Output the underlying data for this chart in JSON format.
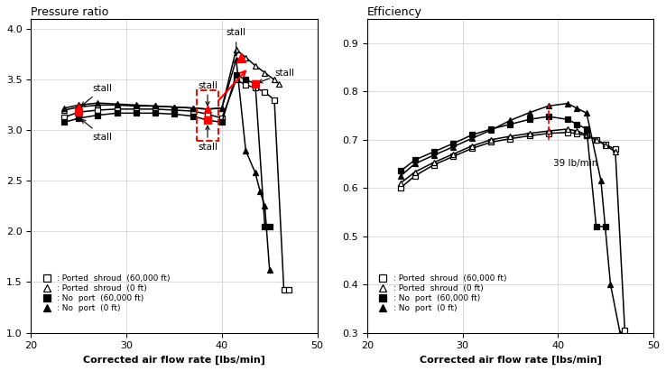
{
  "left_title": "Pressure ratio",
  "right_title": "Efficiency",
  "xlabel": "Corrected air flow rate [lbs/min]",
  "ps60_x": [
    23.5,
    25.0,
    27.0,
    29.0,
    31.0,
    33.0,
    35.0,
    37.0,
    38.5,
    40.0,
    41.5,
    42.5,
    43.5,
    44.5,
    45.5,
    46.5,
    47.0
  ],
  "ps60_pr": [
    3.13,
    3.18,
    3.2,
    3.21,
    3.21,
    3.21,
    3.2,
    3.19,
    3.16,
    3.12,
    3.5,
    3.45,
    3.42,
    3.38,
    3.3,
    1.42,
    1.42
  ],
  "ps0_x": [
    23.5,
    25.0,
    27.0,
    29.0,
    31.0,
    33.0,
    35.0,
    37.0,
    38.5,
    40.0,
    41.5,
    42.5,
    43.5,
    44.5,
    45.5,
    46.0
  ],
  "ps0_pr": [
    3.2,
    3.23,
    3.25,
    3.25,
    3.24,
    3.24,
    3.23,
    3.22,
    3.21,
    3.22,
    3.8,
    3.72,
    3.64,
    3.57,
    3.5,
    3.46
  ],
  "np60_x": [
    23.5,
    25.0,
    27.0,
    29.0,
    31.0,
    33.0,
    35.0,
    37.0,
    38.5,
    40.0,
    41.5,
    42.5,
    43.5,
    44.5,
    45.0
  ],
  "np60_pr": [
    3.08,
    3.12,
    3.15,
    3.17,
    3.17,
    3.17,
    3.16,
    3.14,
    3.1,
    3.08,
    3.55,
    3.5,
    3.46,
    2.05,
    2.05
  ],
  "np0_x": [
    23.5,
    25.0,
    27.0,
    29.0,
    31.0,
    33.0,
    35.0,
    37.0,
    38.5,
    40.0,
    41.5,
    42.5,
    43.5,
    44.0,
    44.5,
    45.0
  ],
  "np0_pr": [
    3.22,
    3.25,
    3.27,
    3.26,
    3.25,
    3.24,
    3.23,
    3.22,
    3.21,
    3.22,
    3.7,
    2.8,
    2.58,
    2.4,
    2.25,
    1.62
  ],
  "ps60_eff_x": [
    23.5,
    25.0,
    27.0,
    29.0,
    31.0,
    33.0,
    35.0,
    37.0,
    39.0,
    41.0,
    42.0,
    43.0,
    44.0,
    45.0,
    46.0,
    47.0
  ],
  "ps60_eff": [
    0.6,
    0.625,
    0.648,
    0.665,
    0.682,
    0.695,
    0.702,
    0.708,
    0.713,
    0.715,
    0.713,
    0.708,
    0.7,
    0.69,
    0.68,
    0.305
  ],
  "ps0_eff_x": [
    23.5,
    25.0,
    27.0,
    29.0,
    31.0,
    33.0,
    35.0,
    37.0,
    39.0,
    41.0,
    42.0,
    43.0,
    44.0,
    45.0,
    46.0
  ],
  "ps0_eff": [
    0.61,
    0.633,
    0.653,
    0.67,
    0.687,
    0.7,
    0.707,
    0.713,
    0.718,
    0.722,
    0.718,
    0.71,
    0.7,
    0.688,
    0.675
  ],
  "np60_eff_x": [
    23.5,
    25.0,
    27.0,
    29.0,
    31.0,
    33.0,
    35.0,
    37.0,
    39.0,
    41.0,
    42.0,
    43.0,
    44.0,
    45.0
  ],
  "np60_eff": [
    0.635,
    0.658,
    0.675,
    0.692,
    0.71,
    0.722,
    0.732,
    0.742,
    0.748,
    0.742,
    0.732,
    0.722,
    0.52,
    0.52
  ],
  "np0_eff_x": [
    23.5,
    25.0,
    27.0,
    29.0,
    31.0,
    33.0,
    35.0,
    37.0,
    39.0,
    41.0,
    42.0,
    43.0,
    44.5,
    45.5,
    46.5
  ],
  "np0_eff": [
    0.625,
    0.65,
    0.668,
    0.685,
    0.703,
    0.72,
    0.74,
    0.756,
    0.77,
    0.775,
    0.765,
    0.755,
    0.615,
    0.4,
    0.3
  ],
  "legend_labels": [
    ": Ported  shroud  (60,000 ft)",
    ": Ported  shroud  (0 ft)",
    ": No  port  (60,000 ft)",
    ": No  port  (0 ft)"
  ]
}
